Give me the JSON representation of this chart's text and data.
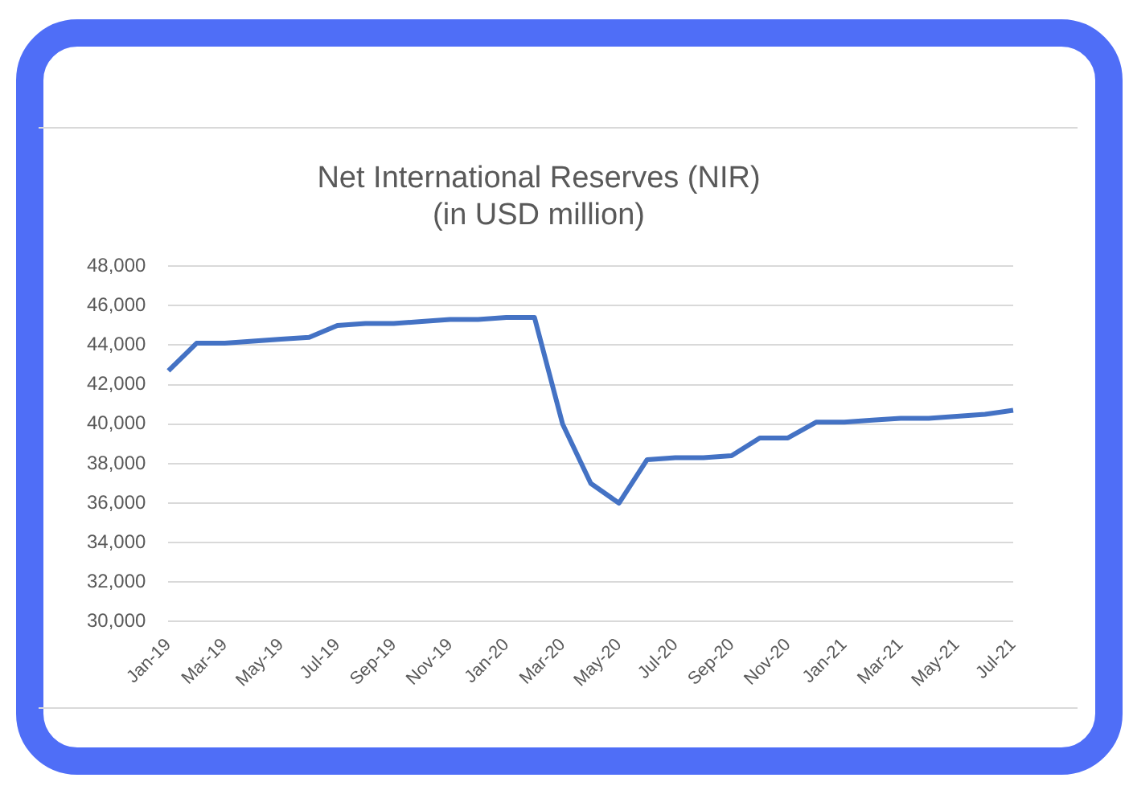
{
  "chart_data": {
    "type": "line",
    "title": [
      "Net International Reserves (NIR)",
      "(in USD million)"
    ],
    "categories": [
      "Jan-19",
      null,
      "Mar-19",
      null,
      "May-19",
      null,
      "Jul-19",
      null,
      "Sep-19",
      null,
      "Nov-19",
      null,
      "Jan-20",
      null,
      "Mar-20",
      null,
      "May-20",
      null,
      "Jul-20",
      null,
      "Sep-20",
      null,
      "Nov-20",
      null,
      "Jan-21",
      null,
      "Mar-21",
      null,
      "May-21",
      null,
      "Jul-21"
    ],
    "series": [
      {
        "color": "#4472c4",
        "values": [
          42700,
          44100,
          44100,
          44200,
          44300,
          44400,
          45000,
          45100,
          45100,
          45200,
          45300,
          45300,
          45400,
          45400,
          40000,
          37000,
          36000,
          38200,
          38300,
          38300,
          38400,
          39300,
          39300,
          40100,
          40100,
          40200,
          40300,
          40300,
          40400,
          40500,
          40700
        ]
      }
    ],
    "ylim": [
      30000,
      48000
    ],
    "yticks": [
      {
        "value": 30000,
        "label": "30,000"
      },
      {
        "value": 32000,
        "label": "32,000"
      },
      {
        "value": 34000,
        "label": "34,000"
      },
      {
        "value": 36000,
        "label": "36,000"
      },
      {
        "value": 38000,
        "label": "38,000"
      },
      {
        "value": 40000,
        "label": "40,000"
      },
      {
        "value": 42000,
        "label": "42,000"
      },
      {
        "value": 44000,
        "label": "44,000"
      },
      {
        "value": 46000,
        "label": "46,000"
      },
      {
        "value": 48000,
        "label": "48,000"
      }
    ],
    "grid": "y",
    "legend": false,
    "marker": "none",
    "line_style": "solid"
  }
}
